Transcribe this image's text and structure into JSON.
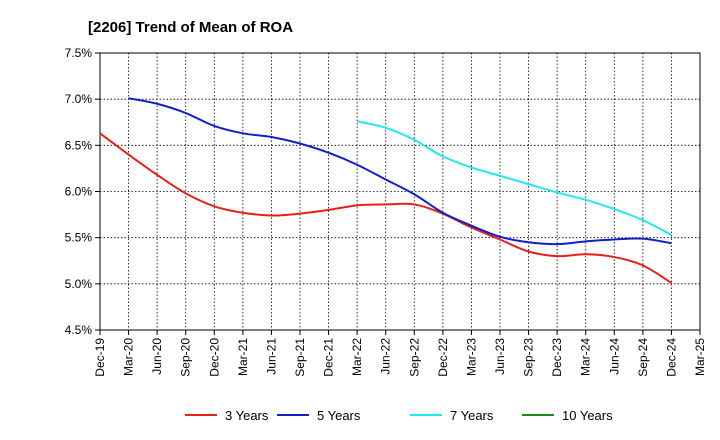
{
  "chart_data": {
    "type": "line",
    "title": "[2206]  Trend of Mean of ROA",
    "xlabel": "",
    "ylabel": "",
    "ylim": [
      4.5,
      7.5
    ],
    "y_ticks": [
      "4.5%",
      "5.0%",
      "5.5%",
      "6.0%",
      "6.5%",
      "7.0%",
      "7.5%"
    ],
    "y_tick_values": [
      4.5,
      5.0,
      5.5,
      6.0,
      6.5,
      7.0,
      7.5
    ],
    "categories": [
      "Dec-19",
      "Mar-20",
      "Jun-20",
      "Sep-20",
      "Dec-20",
      "Mar-21",
      "Jun-21",
      "Sep-21",
      "Dec-21",
      "Mar-22",
      "Jun-22",
      "Sep-22",
      "Dec-22",
      "Mar-23",
      "Jun-23",
      "Sep-23",
      "Dec-23",
      "Mar-24",
      "Jun-24",
      "Sep-24",
      "Dec-24",
      "Mar-25"
    ],
    "grid": true,
    "legend_position": "bottom",
    "series": [
      {
        "name": "3 Years",
        "color": "#e8201a",
        "values": [
          6.63,
          6.4,
          6.18,
          5.98,
          5.84,
          5.77,
          5.74,
          5.76,
          5.8,
          5.85,
          5.86,
          5.86,
          5.76,
          5.61,
          5.48,
          5.35,
          5.3,
          5.32,
          5.29,
          5.2,
          5.01,
          null
        ]
      },
      {
        "name": "5 Years",
        "color": "#1220c8",
        "values": [
          null,
          7.01,
          6.95,
          6.85,
          6.71,
          6.63,
          6.59,
          6.52,
          6.42,
          6.29,
          6.13,
          5.97,
          5.77,
          5.63,
          5.51,
          5.45,
          5.43,
          5.46,
          5.48,
          5.49,
          5.44,
          null
        ]
      },
      {
        "name": "7 Years",
        "color": "#20e8ee",
        "values": [
          null,
          null,
          null,
          null,
          null,
          null,
          null,
          null,
          null,
          6.76,
          6.69,
          6.56,
          6.38,
          6.26,
          6.17,
          6.08,
          5.99,
          5.91,
          5.81,
          5.69,
          5.53,
          null
        ]
      },
      {
        "name": "10 Years",
        "color": "#1e8a1e",
        "values": [
          null,
          null,
          null,
          null,
          null,
          null,
          null,
          null,
          null,
          null,
          null,
          null,
          null,
          null,
          null,
          null,
          null,
          null,
          null,
          null,
          null,
          null
        ]
      }
    ]
  }
}
